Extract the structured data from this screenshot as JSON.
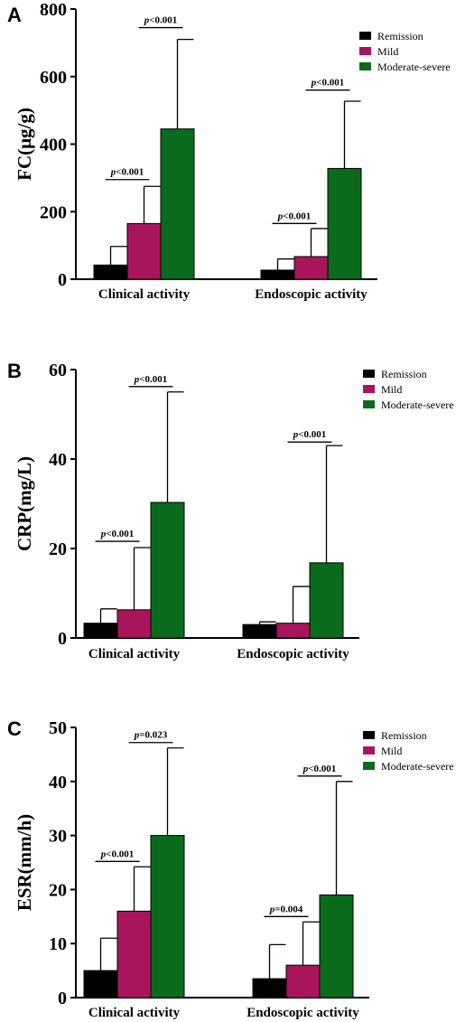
{
  "chart_data": [
    {
      "type": "bar",
      "panel": "A",
      "ylabel": "FC(μg/g)",
      "ylim": [
        0,
        800
      ],
      "yticks": [
        0,
        200,
        400,
        600,
        800
      ],
      "categories": [
        "Clinical activity",
        "Endoscopic activity"
      ],
      "series": [
        {
          "name": "Remission",
          "color": "#000000",
          "values": [
            42,
            27
          ],
          "errors": [
            97,
            60
          ]
        },
        {
          "name": "Mild",
          "color": "#a8155a",
          "values": [
            165,
            67
          ],
          "errors": [
            275,
            150
          ]
        },
        {
          "name": "Moderate-severe",
          "color": "#0a6b1c",
          "values": [
            445,
            328
          ],
          "errors": [
            710,
            527
          ]
        }
      ],
      "annotations": [
        {
          "category": 0,
          "from": 0,
          "to": 1,
          "value": 295,
          "text": "p<0.001"
        },
        {
          "category": 0,
          "from": 1,
          "to": 2,
          "value": 745,
          "text": "p<0.001"
        },
        {
          "category": 1,
          "from": 0,
          "to": 1,
          "value": 165,
          "text": "p<0.001"
        },
        {
          "category": 1,
          "from": 1,
          "to": 2,
          "value": 560,
          "text": "p<0.001"
        }
      ],
      "legend": "top-right"
    },
    {
      "type": "bar",
      "panel": "B",
      "ylabel": "CRP(mg/L)",
      "ylim": [
        0,
        60
      ],
      "yticks": [
        0,
        20,
        40,
        60
      ],
      "categories": [
        "Clinical activity",
        "Endoscopic activity"
      ],
      "series": [
        {
          "name": "Remission",
          "color": "#000000",
          "values": [
            3.3,
            3.0
          ],
          "errors": [
            6.5,
            3.6
          ]
        },
        {
          "name": "Mild",
          "color": "#a8155a",
          "values": [
            6.3,
            3.3
          ],
          "errors": [
            20.2,
            11.5
          ]
        },
        {
          "name": "Moderate-severe",
          "color": "#0a6b1c",
          "values": [
            30.3,
            16.8
          ],
          "errors": [
            55.0,
            43.0
          ]
        }
      ],
      "annotations": [
        {
          "category": 0,
          "from": 0,
          "to": 1,
          "value": 21.6,
          "text": "p<0.001"
        },
        {
          "category": 0,
          "from": 1,
          "to": 2,
          "value": 56.2,
          "text": "p<0.001"
        },
        {
          "category": 1,
          "from": 1,
          "to": 2,
          "value": 43.8,
          "text": "p<0.001"
        }
      ],
      "legend": "top-right"
    },
    {
      "type": "bar",
      "panel": "C",
      "ylabel": "ESR(mm/h)",
      "ylim": [
        0,
        50
      ],
      "yticks": [
        0,
        10,
        20,
        30,
        40,
        50
      ],
      "categories": [
        "Clinical activity",
        "Endoscopic activity"
      ],
      "series": [
        {
          "name": "Remission",
          "color": "#000000",
          "values": [
            5.0,
            3.5
          ],
          "errors": [
            11.0,
            9.8
          ]
        },
        {
          "name": "Mild",
          "color": "#a8155a",
          "values": [
            16.0,
            6.0
          ],
          "errors": [
            24.2,
            14.0
          ]
        },
        {
          "name": "Moderate-severe",
          "color": "#0a6b1c",
          "values": [
            30.0,
            19.0
          ],
          "errors": [
            46.2,
            40.0
          ]
        }
      ],
      "annotations": [
        {
          "category": 0,
          "from": 0,
          "to": 1,
          "value": 25.2,
          "text": "p<0.001"
        },
        {
          "category": 0,
          "from": 1,
          "to": 2,
          "value": 47.2,
          "text": "p=0.023"
        },
        {
          "category": 1,
          "from": 0,
          "to": 1,
          "value": 15.0,
          "text": "p=0.004"
        },
        {
          "category": 1,
          "from": 1,
          "to": 2,
          "value": 41.0,
          "text": "p<0.001"
        }
      ],
      "legend": "top-right"
    }
  ]
}
